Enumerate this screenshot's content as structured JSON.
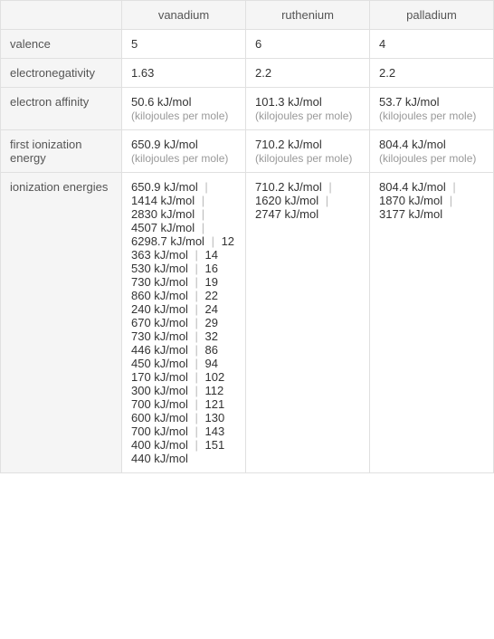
{
  "columns": [
    "vanadium",
    "ruthenium",
    "palladium"
  ],
  "rows": [
    {
      "label": "valence",
      "values": [
        "5",
        "6",
        "4"
      ]
    },
    {
      "label": "electronegativity",
      "values": [
        "1.63",
        "2.2",
        "2.2"
      ]
    },
    {
      "label": "electron affinity",
      "values": [
        {
          "val": "50.6 kJ/mol",
          "unit": "(kilojoules per mole)"
        },
        {
          "val": "101.3 kJ/mol",
          "unit": "(kilojoules per mole)"
        },
        {
          "val": "53.7 kJ/mol",
          "unit": "(kilojoules per mole)"
        }
      ]
    },
    {
      "label": "first ionization energy",
      "values": [
        {
          "val": "650.9 kJ/mol",
          "unit": "(kilojoules per mole)"
        },
        {
          "val": "710.2 kJ/mol",
          "unit": "(kilojoules per mole)"
        },
        {
          "val": "804.4 kJ/mol",
          "unit": "(kilojoules per mole)"
        }
      ]
    },
    {
      "label": "ionization energies",
      "values": [
        {
          "list": [
            "650.9 kJ/mol",
            "1414 kJ/mol",
            "2830 kJ/mol",
            "4507 kJ/mol",
            "6298.7 kJ/mol",
            "12 363 kJ/mol",
            "14 530 kJ/mol",
            "16 730 kJ/mol",
            "19 860 kJ/mol",
            "22 240 kJ/mol",
            "24 670 kJ/mol",
            "29 730 kJ/mol",
            "32 446 kJ/mol",
            "86 450 kJ/mol",
            "94 170 kJ/mol",
            "102 300 kJ/mol",
            "112 700 kJ/mol",
            "121 600 kJ/mol",
            "130 700 kJ/mol",
            "143 400 kJ/mol",
            "151 440 kJ/mol"
          ]
        },
        {
          "list": [
            "710.2 kJ/mol",
            "1620 kJ/mol",
            "2747 kJ/mol"
          ]
        },
        {
          "list": [
            "804.4 kJ/mol",
            "1870 kJ/mol",
            "3177 kJ/mol"
          ]
        }
      ]
    }
  ],
  "styles": {
    "border_color": "#e0e0e0",
    "header_bg": "#f5f5f5",
    "text_color": "#333333",
    "header_text_color": "#555555",
    "unit_color": "#999999",
    "sep_color": "#bbbbbb",
    "font_size": 13,
    "unit_font_size": 12
  }
}
